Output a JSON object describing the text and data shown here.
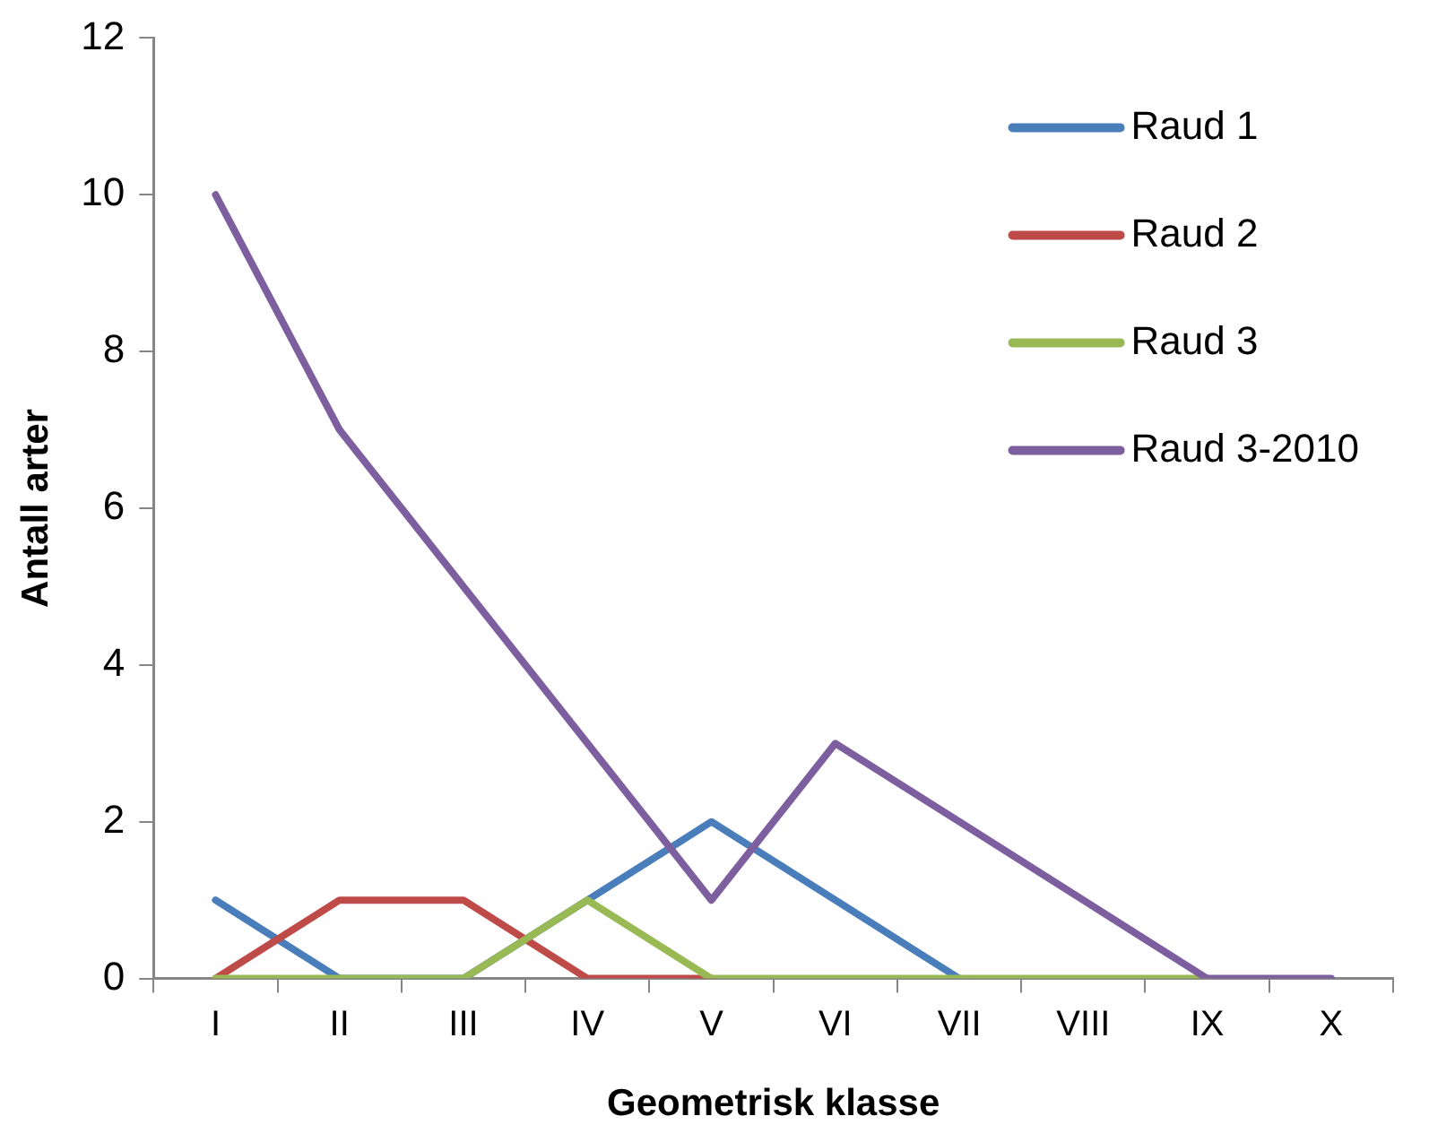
{
  "chart_data": {
    "type": "line",
    "xlabel": "Geometrisk klasse",
    "ylabel": "Antall arter",
    "categories": [
      "I",
      "II",
      "III",
      "IV",
      "V",
      "VI",
      "VII",
      "VIII",
      "IX",
      "X"
    ],
    "series": [
      {
        "name": "Raud 1",
        "color": "#4a7ebb",
        "values": [
          1,
          0,
          0,
          1,
          2,
          1,
          0,
          null,
          null,
          null
        ]
      },
      {
        "name": "Raud 2",
        "color": "#be4b48",
        "values": [
          0,
          1,
          1,
          0,
          0,
          null,
          null,
          null,
          null,
          null
        ]
      },
      {
        "name": "Raud 3",
        "color": "#98b954",
        "values": [
          0,
          0,
          0,
          1,
          0,
          0,
          0,
          0,
          0,
          null
        ]
      },
      {
        "name": "Raud 3-2010",
        "color": "#7d5fa0",
        "values": [
          10,
          7,
          5,
          3,
          1,
          3,
          2,
          1,
          0,
          0
        ]
      }
    ],
    "ylim": [
      0,
      12
    ],
    "yticks": [
      0,
      2,
      4,
      6,
      8,
      10,
      12
    ],
    "grid": false,
    "legend": "top right",
    "marker": "none",
    "line_style": "solid"
  }
}
